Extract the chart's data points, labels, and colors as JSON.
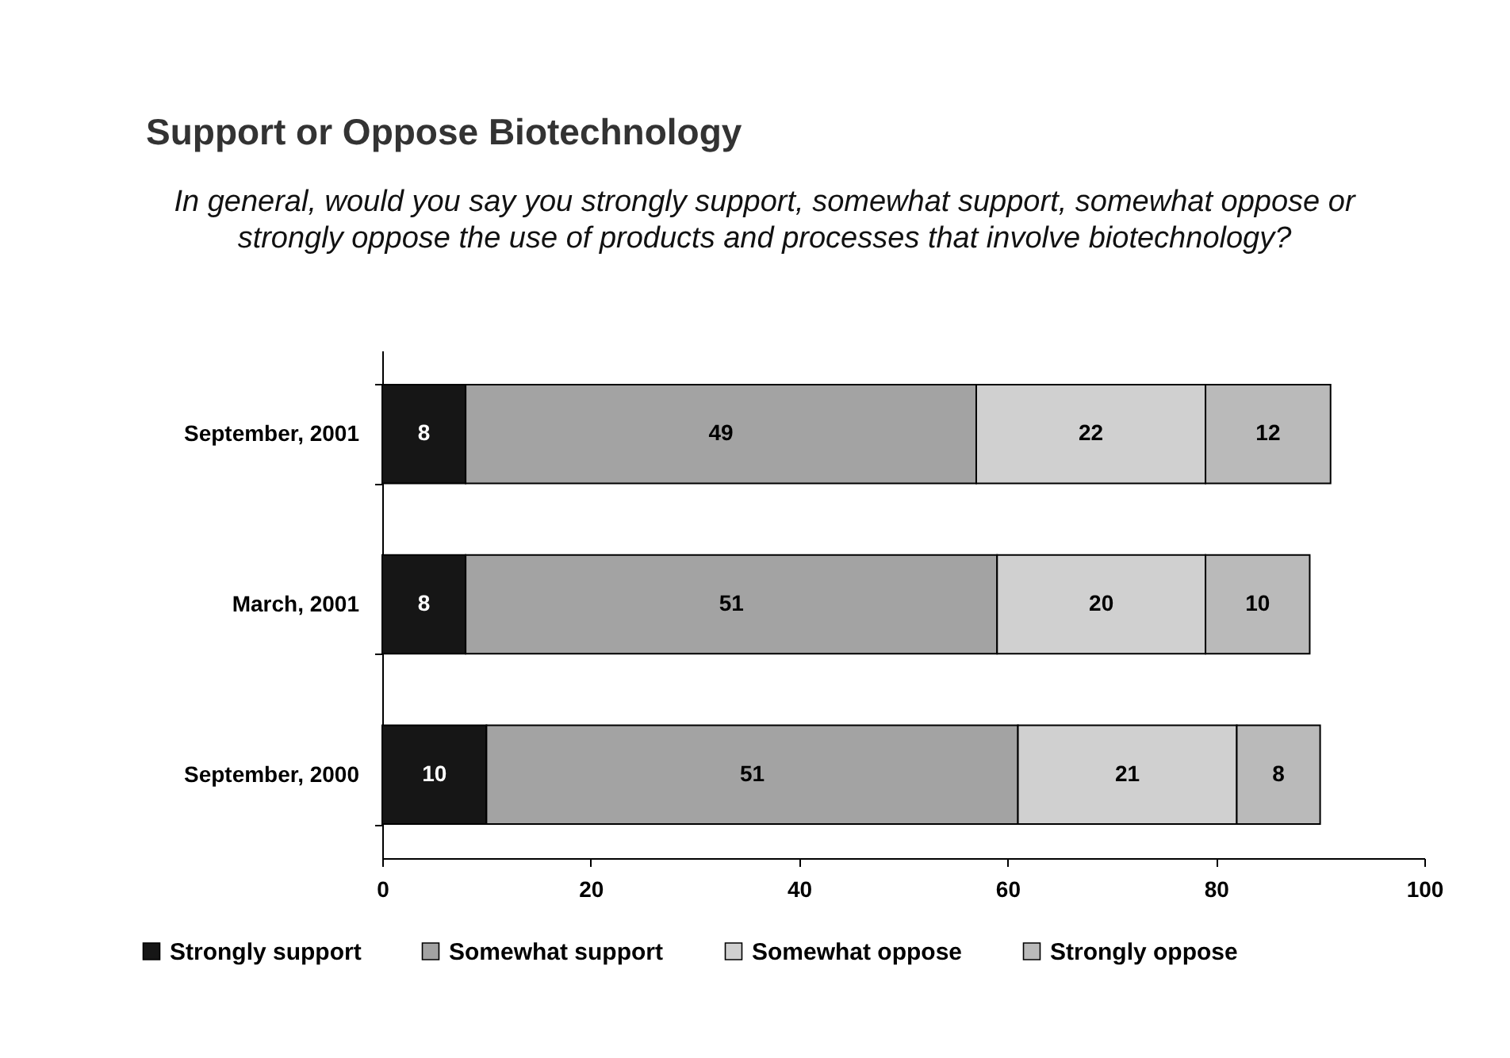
{
  "chart_data": {
    "type": "bar",
    "title": "Support or Oppose Biotechnology",
    "subtitle": "In general, would you say you strongly support, somewhat support, somewhat oppose or strongly oppose the use of products and processes that involve biotechnology?",
    "categories": [
      "September, 2001",
      "March, 2001",
      "September, 2000"
    ],
    "series": [
      {
        "name": "Strongly support",
        "color": "#161616",
        "values": [
          8,
          8,
          10
        ]
      },
      {
        "name": "Somewhat support",
        "color": "#a3a3a3",
        "values": [
          49,
          51,
          51
        ]
      },
      {
        "name": "Somewhat oppose",
        "color": "#d0d0d0",
        "values": [
          22,
          20,
          21
        ]
      },
      {
        "name": "Strongly oppose",
        "color": "#bababa",
        "values": [
          12,
          10,
          8
        ]
      }
    ],
    "stacked": true,
    "orientation": "horizontal",
    "xlim": [
      0,
      100
    ],
    "xticks": [
      0,
      20,
      40,
      60,
      80,
      100
    ],
    "grid": false,
    "legend": "bottom",
    "data_labels": true
  }
}
